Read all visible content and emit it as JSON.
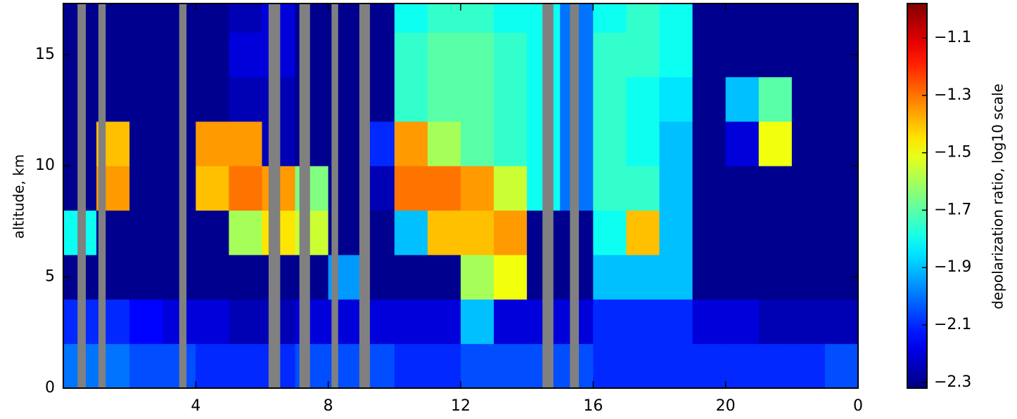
{
  "chart_data": {
    "type": "heatmap",
    "ylabel": "altitude, km",
    "colorbar_label": "depolarization ratio, log10 scale",
    "xbins": [
      0,
      1,
      2,
      3,
      4,
      5,
      6,
      7,
      8,
      9,
      10,
      11,
      12,
      13,
      14,
      15,
      16,
      17,
      18,
      19,
      20,
      21,
      22,
      23,
      24
    ],
    "ybins": [
      0,
      2,
      4,
      6,
      8,
      10,
      12,
      14,
      16,
      17.3
    ],
    "z": [
      [
        -2.0,
        -2.0,
        -2.05,
        -2.05,
        -2.1,
        -2.1,
        -2.1,
        -2.05,
        -2.05,
        -2.05,
        -2.1,
        -2.1,
        -2.05,
        -2.05,
        -2.05,
        -2.05,
        -2.1,
        -2.1,
        -2.1,
        -2.1,
        -2.1,
        -2.1,
        -2.1,
        -2.05
      ],
      [
        -2.1,
        -2.1,
        -2.15,
        -2.2,
        -2.2,
        -2.25,
        -2.25,
        -2.2,
        -2.2,
        -2.2,
        -2.2,
        -2.2,
        -1.9,
        -2.2,
        -2.2,
        -2.2,
        -2.1,
        -2.1,
        -2.1,
        -2.2,
        -2.2,
        -2.25,
        -2.25,
        -2.25
      ],
      [
        -2.3,
        -2.3,
        -2.3,
        -2.3,
        -2.3,
        -2.3,
        -2.3,
        -2.3,
        -1.95,
        -2.3,
        -2.3,
        -2.3,
        -1.6,
        -1.5,
        -2.3,
        -2.3,
        -1.9,
        -1.9,
        -1.9,
        -2.3,
        -2.3,
        -2.3,
        -2.3,
        -2.3
      ],
      [
        -1.8,
        -2.3,
        -2.3,
        -2.3,
        -2.3,
        -1.6,
        -1.45,
        -1.55,
        -2.3,
        -2.3,
        -1.9,
        -1.4,
        -1.4,
        -1.35,
        -2.3,
        -2.3,
        -1.8,
        -1.4,
        -1.9,
        -2.3,
        -2.3,
        -2.3,
        -2.3,
        -2.3
      ],
      [
        -2.3,
        -1.35,
        -2.3,
        -2.3,
        -1.4,
        -1.3,
        -1.35,
        -1.65,
        -2.3,
        -2.25,
        -1.3,
        -1.3,
        -1.35,
        -1.55,
        -1.8,
        -2.0,
        -1.75,
        -1.75,
        -1.9,
        -2.3,
        -2.3,
        -2.3,
        -2.3,
        -2.3
      ],
      [
        -2.3,
        -1.4,
        -2.3,
        -2.3,
        -1.35,
        -1.35,
        -2.25,
        -2.3,
        -2.3,
        -2.1,
        -1.35,
        -1.6,
        -1.7,
        -1.75,
        -1.8,
        -2.0,
        -1.75,
        -1.8,
        -1.9,
        -2.3,
        -2.2,
        -1.5,
        -2.3,
        -2.3
      ],
      [
        -2.3,
        -2.3,
        -2.3,
        -2.3,
        -2.3,
        -2.25,
        -2.25,
        -2.3,
        -2.3,
        -2.3,
        -1.75,
        -1.7,
        -1.7,
        -1.75,
        -1.8,
        -2.0,
        -1.75,
        -1.8,
        -1.85,
        -2.3,
        -1.9,
        -1.7,
        -2.3,
        -2.3
      ],
      [
        -2.3,
        -2.3,
        -2.3,
        -2.3,
        -2.3,
        -2.2,
        -2.2,
        -2.3,
        -2.3,
        -2.3,
        -1.75,
        -1.7,
        -1.7,
        -1.75,
        -1.8,
        -2.0,
        -1.75,
        -1.75,
        -1.8,
        -2.3,
        -2.3,
        -2.3,
        -2.3,
        -2.3
      ],
      [
        -2.3,
        -2.3,
        -2.3,
        -2.3,
        -2.3,
        -2.25,
        -2.2,
        -2.3,
        -2.3,
        -2.3,
        -1.8,
        -1.75,
        -1.75,
        -1.8,
        -1.8,
        -2.0,
        -1.8,
        -1.75,
        -1.8,
        -2.3,
        -2.3,
        -2.3,
        -2.3,
        -2.3
      ]
    ],
    "gaps": [
      [
        0.43,
        0.68
      ],
      [
        1.06,
        1.28
      ],
      [
        3.5,
        3.72
      ],
      [
        6.2,
        6.55
      ],
      [
        7.13,
        7.45
      ],
      [
        8.1,
        8.3
      ],
      [
        8.94,
        9.26
      ],
      [
        14.47,
        14.8
      ],
      [
        15.3,
        15.57
      ]
    ],
    "gap_color": "#808080",
    "xlim": [
      0,
      24
    ],
    "xticks": [
      4,
      8,
      12,
      16,
      20,
      {
        "value": 24,
        "label": "0"
      }
    ],
    "ylim": [
      0,
      17.3
    ],
    "yticks": [
      0,
      5,
      10,
      15
    ],
    "clim": [
      -2.32,
      -0.98
    ],
    "cticks": [
      {
        "value": -1.1,
        "label": "−1.1"
      },
      {
        "value": -1.3,
        "label": "−1.3"
      },
      {
        "value": -1.5,
        "label": "−1.5"
      },
      {
        "value": -1.7,
        "label": "−1.7"
      },
      {
        "value": -1.9,
        "label": "−1.9"
      },
      {
        "value": -2.1,
        "label": "−2.1"
      },
      {
        "value": -2.3,
        "label": "−2.3"
      }
    ],
    "colormap": "jet"
  }
}
